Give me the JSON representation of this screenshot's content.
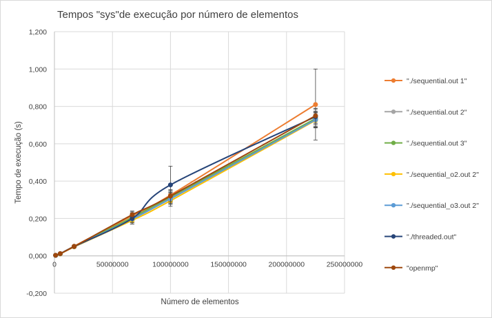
{
  "chart_data": {
    "type": "scatter",
    "title": "Tempos \"sys\"de execução por número  de elementos",
    "xlabel": "Número  de elementos",
    "ylabel": "Tempo  de execução (s)",
    "xlim": [
      0,
      250000000
    ],
    "ylim": [
      -0.2,
      1.2
    ],
    "x_ticks": [
      0,
      50000000,
      100000000,
      150000000,
      200000000,
      250000000
    ],
    "x_tick_labels": [
      "0",
      "50000000",
      "100000000",
      "150000000",
      "200000000",
      "250000000"
    ],
    "y_ticks": [
      -0.2,
      0,
      0.2,
      0.4,
      0.6,
      0.8,
      1.0,
      1.2
    ],
    "y_tick_labels": [
      "-0,200",
      "0,000",
      "0,200",
      "0,400",
      "0,600",
      "0,800",
      "1,000",
      "1,200"
    ],
    "grid": "vertical and horizontal",
    "legend_position": "right",
    "smoothed_lines": true,
    "x": [
      1000000,
      5000000,
      17000000,
      67000000,
      100000000,
      225000000
    ],
    "series": [
      {
        "name": "\"./sequential.out 1\"",
        "color": "#ed7d31",
        "values": [
          0.003,
          0.012,
          0.052,
          0.215,
          0.325,
          0.81
        ],
        "errors": [
          0.002,
          0.003,
          0.006,
          0.02,
          0.03,
          0.19
        ]
      },
      {
        "name": "\"./sequential.out 2\"",
        "color": "#a5a5a5",
        "values": [
          0.003,
          0.011,
          0.05,
          0.2,
          0.31,
          0.73
        ],
        "errors": [
          0.002,
          0.003,
          0.005,
          0.02,
          0.03,
          0.04
        ]
      },
      {
        "name": "\"./sequential.out 3\"",
        "color": "#70ad47",
        "values": [
          0.003,
          0.011,
          0.05,
          0.205,
          0.315,
          0.735
        ],
        "errors": [
          0.002,
          0.003,
          0.005,
          0.02,
          0.03,
          0.04
        ]
      },
      {
        "name": "\"./sequential_o2.out 2\"",
        "color": "#ffc000",
        "values": [
          0.002,
          0.01,
          0.048,
          0.19,
          0.295,
          0.725
        ],
        "errors": [
          0.002,
          0.003,
          0.005,
          0.02,
          0.03,
          0.04
        ]
      },
      {
        "name": "\"./sequential_o3.out 2\"",
        "color": "#5b9bd5",
        "values": [
          0.002,
          0.011,
          0.049,
          0.197,
          0.305,
          0.728
        ],
        "errors": [
          0.002,
          0.003,
          0.005,
          0.02,
          0.03,
          0.04
        ]
      },
      {
        "name": "\"./threaded.out\"",
        "color": "#264478",
        "values": [
          0.003,
          0.012,
          0.05,
          0.2,
          0.38,
          0.745
        ],
        "errors": [
          0.002,
          0.003,
          0.006,
          0.03,
          0.1,
          0.04
        ]
      },
      {
        "name": "\"openmp\"",
        "color": "#9e480e",
        "values": [
          0.003,
          0.012,
          0.05,
          0.22,
          0.32,
          0.75
        ],
        "errors": [
          0.002,
          0.003,
          0.006,
          0.02,
          0.03,
          0.04
        ]
      }
    ]
  }
}
